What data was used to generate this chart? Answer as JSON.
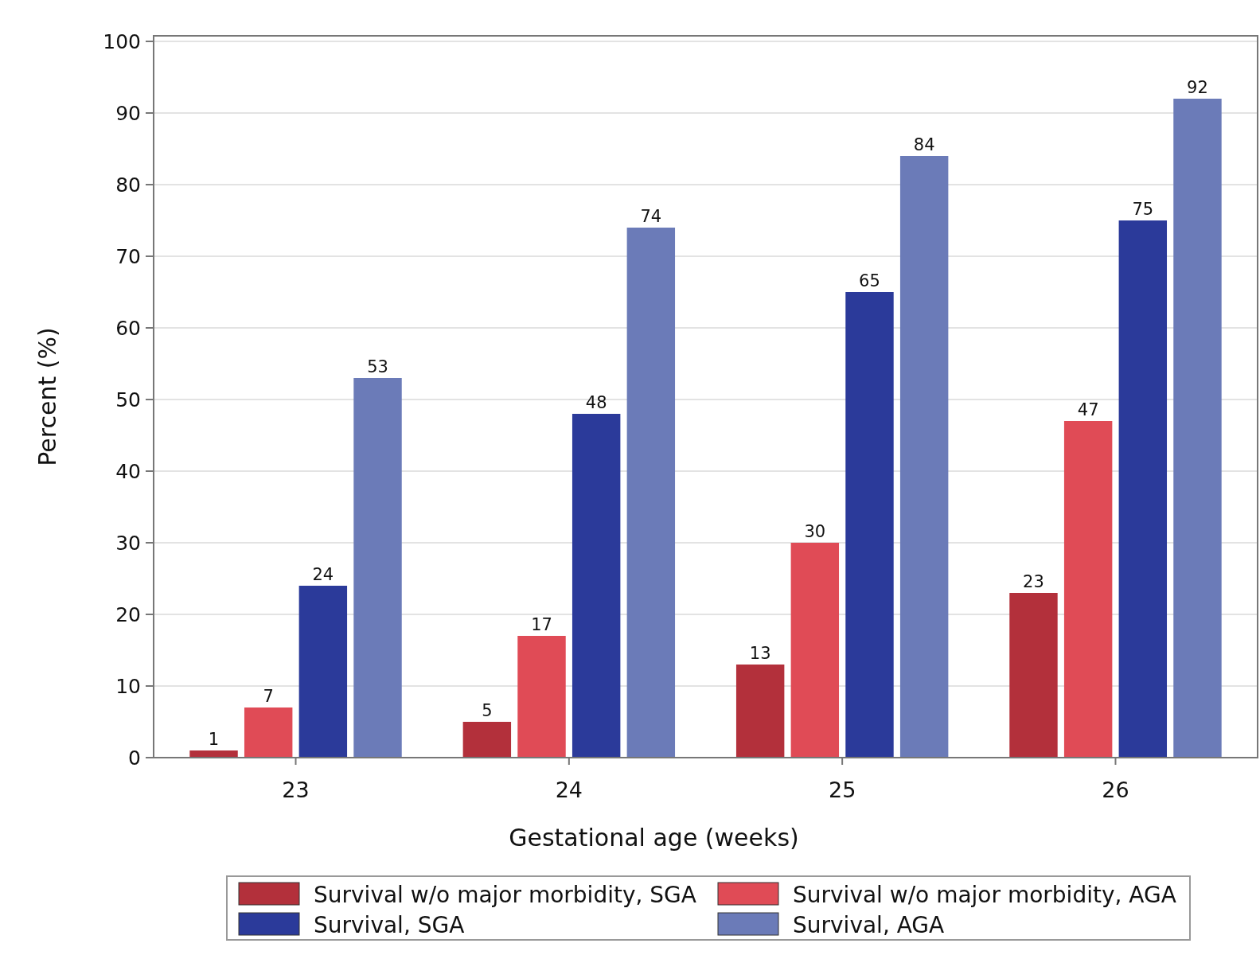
{
  "chart_data": {
    "type": "bar",
    "xlabel": "Gestational age (weeks)",
    "ylabel": "Percent (%)",
    "categories": [
      "23",
      "24",
      "25",
      "26"
    ],
    "series": [
      {
        "name": "Survival w/o major morbidity, SGA",
        "color": "#b3303b",
        "values": [
          1,
          5,
          13,
          23
        ]
      },
      {
        "name": "Survival w/o major morbidity, AGA",
        "color": "#e04b56",
        "values": [
          7,
          17,
          30,
          47
        ]
      },
      {
        "name": "Survival, SGA",
        "color": "#2b3a9a",
        "values": [
          24,
          48,
          65,
          75
        ]
      },
      {
        "name": "Survival, AGA",
        "color": "#6b7bb8",
        "values": [
          53,
          74,
          84,
          92
        ]
      }
    ],
    "ylim": [
      0,
      100
    ],
    "yticks": [
      0,
      10,
      20,
      30,
      40,
      50,
      60,
      70,
      80,
      90,
      100
    ],
    "grid": "y",
    "legend": "bottom",
    "data_labels": true
  }
}
